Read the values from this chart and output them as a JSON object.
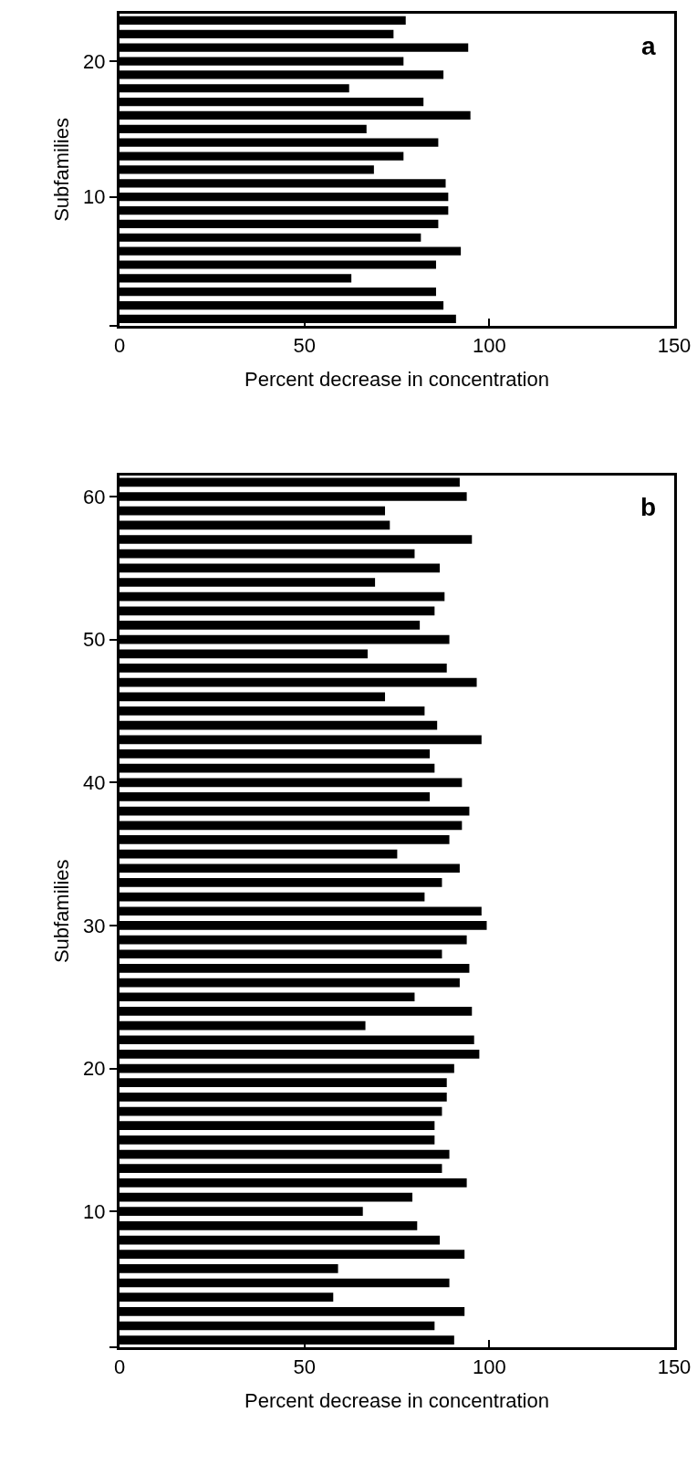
{
  "chart_data": [
    {
      "type": "bar",
      "orientation": "horizontal",
      "color": "#000000",
      "xlabel": "Percent decrease in concentration",
      "ylabel": "Subfamilies",
      "annotations": [
        "a"
      ],
      "x": [
        1,
        2,
        3,
        4,
        5,
        6,
        7,
        8,
        9,
        10,
        11,
        12,
        13,
        14,
        15,
        16,
        17,
        18,
        19,
        20,
        21,
        22,
        23
      ],
      "values": [
        91,
        87.6,
        85.6,
        62.7,
        85.6,
        92.3,
        81.5,
        86.2,
        88.9,
        88.9,
        88.2,
        68.8,
        76.8,
        86.2,
        66.8,
        94.9,
        82.2,
        62.1,
        87.6,
        76.8,
        94.3,
        74.1,
        77.4
      ],
      "xlim": [
        0,
        150
      ],
      "xticks": [
        0,
        50,
        100,
        150
      ],
      "ylim": [
        0.5,
        23.5
      ],
      "yticks": [
        {
          "value": 0.5,
          "label": null
        },
        10,
        20
      ]
    },
    {
      "type": "bar",
      "orientation": "horizontal",
      "color": "#000000",
      "xlabel": "Percent decrease in concentration",
      "ylabel": "Subfamilies",
      "annotations": [
        "b"
      ],
      "x": [
        1,
        2,
        3,
        4,
        5,
        6,
        7,
        8,
        9,
        10,
        11,
        12,
        13,
        14,
        15,
        16,
        17,
        18,
        19,
        20,
        21,
        22,
        23,
        24,
        25,
        26,
        27,
        28,
        29,
        30,
        31,
        32,
        33,
        34,
        35,
        36,
        37,
        38,
        39,
        40,
        41,
        42,
        43,
        44,
        45,
        46,
        47,
        48,
        49,
        50,
        51,
        52,
        53,
        54,
        55,
        56,
        57,
        58,
        59,
        60,
        61
      ],
      "values": [
        90.5,
        85.2,
        93.3,
        57.8,
        89.2,
        59.1,
        93.3,
        86.6,
        80.5,
        65.8,
        79.2,
        93.9,
        87.2,
        89.2,
        85.2,
        85.2,
        87.2,
        88.5,
        88.5,
        90.5,
        97.3,
        95.9,
        66.5,
        95.3,
        79.8,
        92.0,
        94.6,
        87.2,
        93.9,
        99.3,
        97.9,
        82.5,
        87.2,
        92.0,
        75.1,
        89.2,
        92.6,
        94.6,
        83.9,
        92.6,
        85.2,
        83.9,
        97.9,
        85.9,
        82.5,
        71.8,
        96.6,
        88.5,
        67.1,
        89.2,
        81.2,
        85.2,
        87.9,
        69.1,
        86.6,
        79.8,
        95.3,
        73.1,
        71.8,
        93.9,
        92.0
      ],
      "xlim": [
        0,
        150
      ],
      "xticks": [
        0,
        50,
        100,
        150
      ],
      "ylim": [
        0.5,
        61.5
      ],
      "yticks": [
        {
          "value": 0.5,
          "label": null
        },
        10,
        20,
        30,
        40,
        50,
        60
      ]
    }
  ]
}
